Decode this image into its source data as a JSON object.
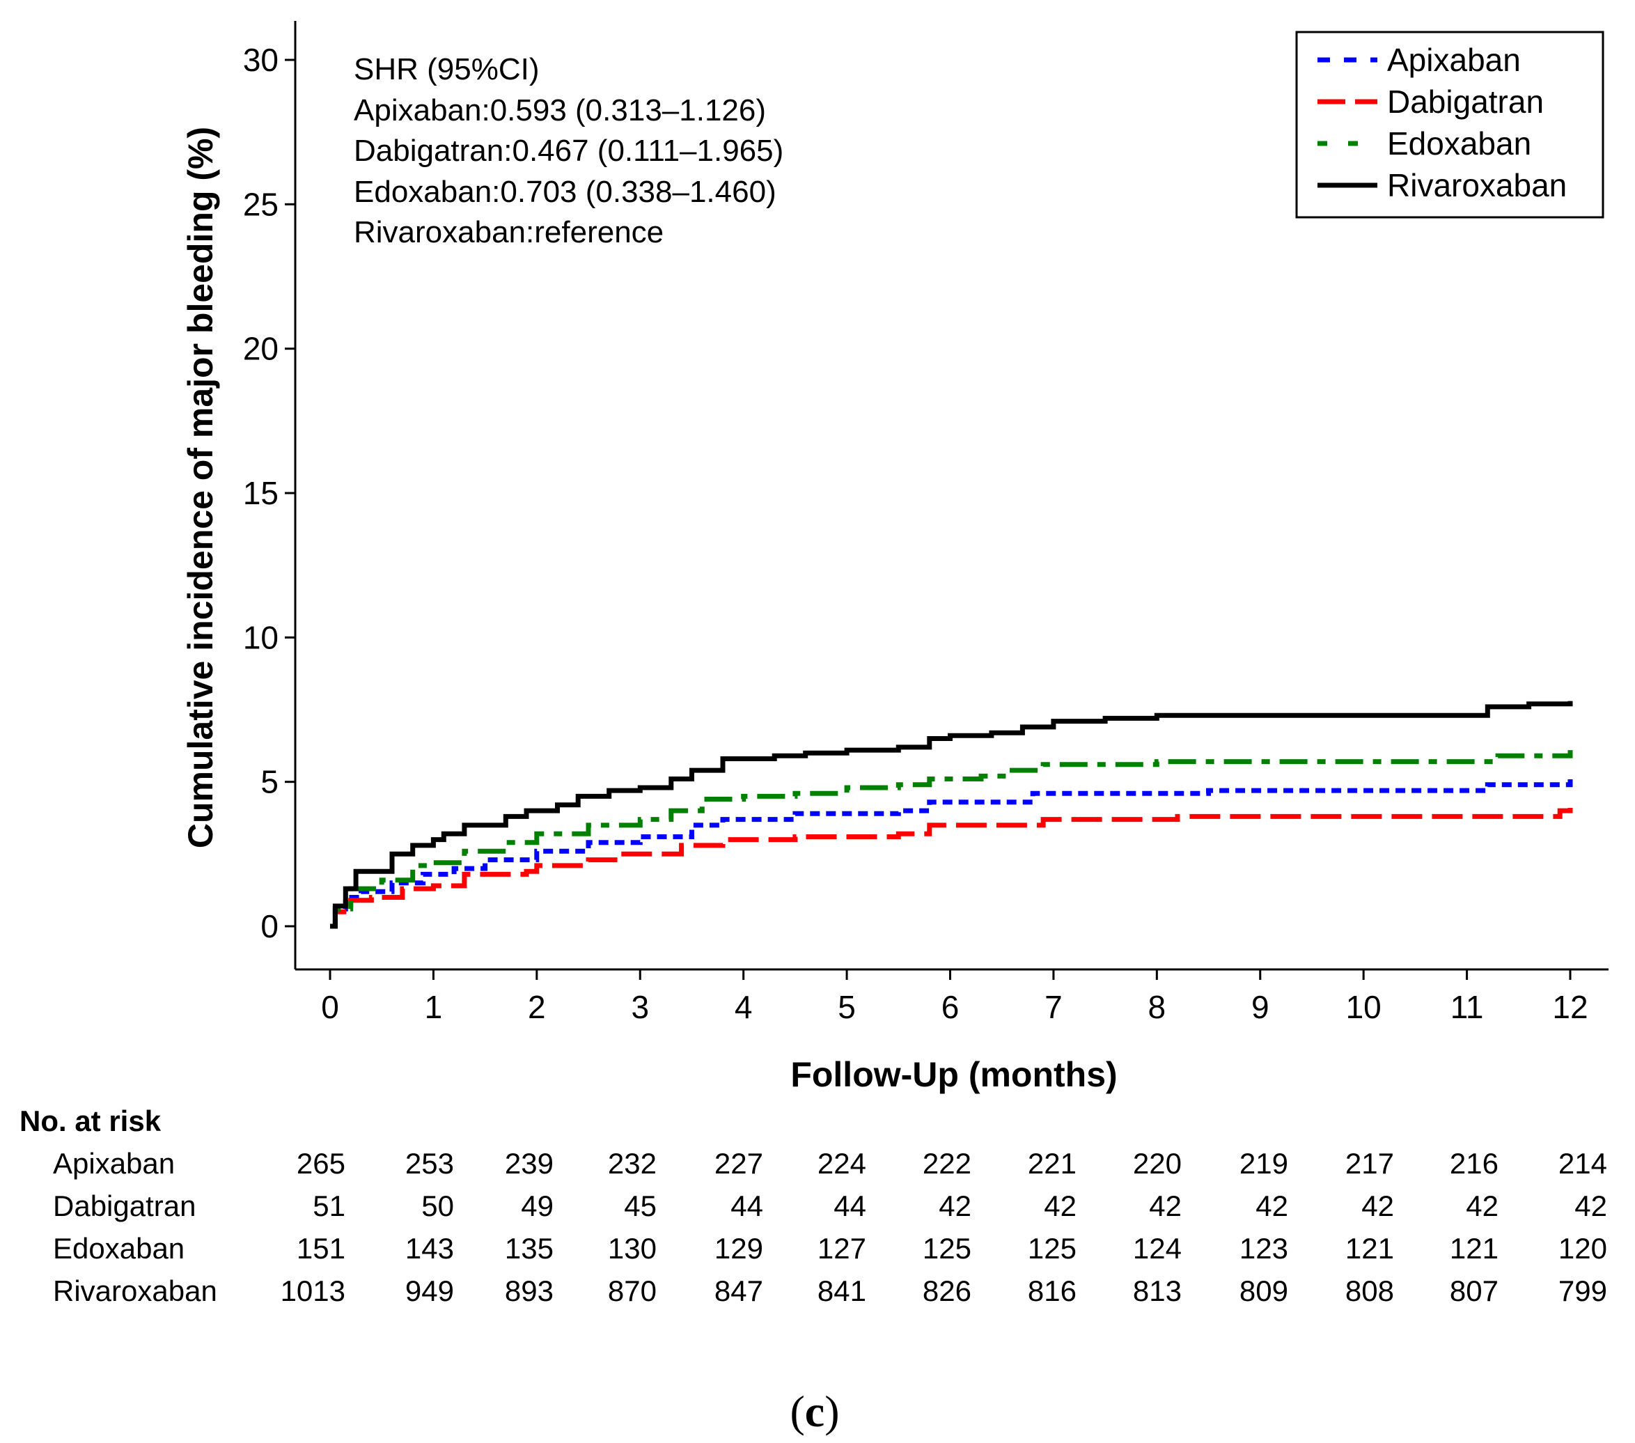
{
  "chart_data": {
    "type": "line",
    "subtype": "step",
    "ylabel": "Cumulative incidence of major bleeding (%)",
    "xlabel": "Follow-Up (months)",
    "xlim": [
      0,
      12
    ],
    "ylim": [
      0,
      30
    ],
    "x_ticks": [
      0,
      1,
      2,
      3,
      4,
      5,
      6,
      7,
      8,
      9,
      10,
      11,
      12
    ],
    "y_ticks": [
      0,
      5,
      10,
      15,
      20,
      25,
      30
    ],
    "grid": false,
    "legend_position": "top-right",
    "annotation": [
      "SHR (95%CI)",
      "Apixaban:0.593 (0.313–1.126)",
      "Dabigatran:0.467 (0.111–1.965)",
      "Edoxaban:0.703 (0.338–1.460)",
      "Rivaroxaban:reference"
    ],
    "series": [
      {
        "name": "Apixaban",
        "color": "#0000ff",
        "style": "dotted",
        "points": [
          [
            0,
            0
          ],
          [
            0.05,
            0.6
          ],
          [
            0.15,
            1.0
          ],
          [
            0.3,
            1.2
          ],
          [
            0.5,
            1.2
          ],
          [
            0.6,
            1.5
          ],
          [
            0.9,
            1.8
          ],
          [
            1.2,
            2.0
          ],
          [
            1.5,
            2.3
          ],
          [
            2.0,
            2.6
          ],
          [
            2.5,
            2.9
          ],
          [
            3.0,
            3.1
          ],
          [
            3.5,
            3.5
          ],
          [
            3.8,
            3.7
          ],
          [
            4.3,
            3.7
          ],
          [
            4.5,
            3.9
          ],
          [
            5.0,
            3.9
          ],
          [
            5.5,
            4.0
          ],
          [
            5.8,
            4.3
          ],
          [
            6.6,
            4.3
          ],
          [
            6.8,
            4.6
          ],
          [
            8.0,
            4.6
          ],
          [
            8.5,
            4.7
          ],
          [
            11.0,
            4.7
          ],
          [
            11.2,
            4.9
          ],
          [
            12.0,
            5.1
          ]
        ]
      },
      {
        "name": "Dabigatran",
        "color": "#ff0000",
        "style": "dashed",
        "points": [
          [
            0,
            0
          ],
          [
            0.05,
            0.5
          ],
          [
            0.2,
            0.9
          ],
          [
            0.4,
            1.0
          ],
          [
            0.55,
            1.0
          ],
          [
            0.7,
            1.3
          ],
          [
            1.0,
            1.4
          ],
          [
            1.3,
            1.8
          ],
          [
            1.9,
            1.9
          ],
          [
            2.0,
            2.1
          ],
          [
            2.5,
            2.3
          ],
          [
            2.8,
            2.5
          ],
          [
            3.0,
            2.5
          ],
          [
            3.4,
            2.8
          ],
          [
            3.8,
            3.0
          ],
          [
            4.5,
            3.1
          ],
          [
            5.5,
            3.2
          ],
          [
            5.8,
            3.5
          ],
          [
            6.6,
            3.5
          ],
          [
            6.9,
            3.7
          ],
          [
            8.0,
            3.7
          ],
          [
            8.2,
            3.8
          ],
          [
            11.8,
            3.8
          ],
          [
            11.9,
            4.0
          ],
          [
            12.0,
            4.1
          ]
        ]
      },
      {
        "name": "Edoxaban",
        "color": "#008000",
        "style": "dashdot",
        "points": [
          [
            0,
            0
          ],
          [
            0.05,
            0.6
          ],
          [
            0.2,
            1.3
          ],
          [
            0.5,
            1.6
          ],
          [
            0.8,
            2.1
          ],
          [
            1.0,
            2.2
          ],
          [
            1.3,
            2.6
          ],
          [
            1.7,
            2.9
          ],
          [
            2.0,
            3.2
          ],
          [
            2.5,
            3.5
          ],
          [
            3.0,
            3.7
          ],
          [
            3.3,
            4.0
          ],
          [
            3.6,
            4.4
          ],
          [
            4.0,
            4.5
          ],
          [
            4.5,
            4.6
          ],
          [
            5.0,
            4.8
          ],
          [
            5.5,
            4.9
          ],
          [
            5.8,
            5.1
          ],
          [
            6.3,
            5.2
          ],
          [
            6.6,
            5.4
          ],
          [
            6.9,
            5.6
          ],
          [
            7.5,
            5.6
          ],
          [
            8.0,
            5.7
          ],
          [
            11.0,
            5.7
          ],
          [
            11.3,
            5.9
          ],
          [
            12.0,
            6.1
          ]
        ]
      },
      {
        "name": "Rivaroxaban",
        "color": "#000000",
        "style": "solid",
        "points": [
          [
            0,
            0
          ],
          [
            0.05,
            0.7
          ],
          [
            0.15,
            1.3
          ],
          [
            0.25,
            1.9
          ],
          [
            0.5,
            1.9
          ],
          [
            0.6,
            2.5
          ],
          [
            0.8,
            2.8
          ],
          [
            1.0,
            3.0
          ],
          [
            1.1,
            3.2
          ],
          [
            1.3,
            3.5
          ],
          [
            1.7,
            3.8
          ],
          [
            1.9,
            4.0
          ],
          [
            2.2,
            4.2
          ],
          [
            2.4,
            4.5
          ],
          [
            2.7,
            4.7
          ],
          [
            3.0,
            4.8
          ],
          [
            3.3,
            5.1
          ],
          [
            3.5,
            5.4
          ],
          [
            3.8,
            5.8
          ],
          [
            4.0,
            5.8
          ],
          [
            4.3,
            5.9
          ],
          [
            4.6,
            6.0
          ],
          [
            5.0,
            6.1
          ],
          [
            5.5,
            6.2
          ],
          [
            5.8,
            6.5
          ],
          [
            6.0,
            6.6
          ],
          [
            6.4,
            6.7
          ],
          [
            6.7,
            6.9
          ],
          [
            7.0,
            7.1
          ],
          [
            7.5,
            7.2
          ],
          [
            8.0,
            7.3
          ],
          [
            8.5,
            7.3
          ],
          [
            11.0,
            7.3
          ],
          [
            11.2,
            7.6
          ],
          [
            11.6,
            7.7
          ],
          [
            12.0,
            7.8
          ]
        ]
      }
    ],
    "risk_table": {
      "title": "No. at risk",
      "rows": [
        {
          "name": "Apixaban",
          "values": [
            "265",
            "253",
            "239",
            "232",
            "227",
            "224",
            "222",
            "221",
            "220",
            "219",
            "217",
            "216",
            "214"
          ]
        },
        {
          "name": "Dabigatran",
          "values": [
            "51",
            "50",
            "49",
            "45",
            "44",
            "44",
            "42",
            "42",
            "42",
            "42",
            "42",
            "42",
            "42"
          ]
        },
        {
          "name": "Edoxaban",
          "values": [
            "151",
            "143",
            "135",
            "130",
            "129",
            "127",
            "125",
            "125",
            "124",
            "123",
            "121",
            "121",
            "120"
          ]
        },
        {
          "name": "Rivaroxaban",
          "values": [
            "1013",
            "949",
            "893",
            "870",
            "847",
            "841",
            "826",
            "816",
            "813",
            "809",
            "808",
            "807",
            "799"
          ]
        }
      ]
    },
    "panel_label": "(c)"
  }
}
